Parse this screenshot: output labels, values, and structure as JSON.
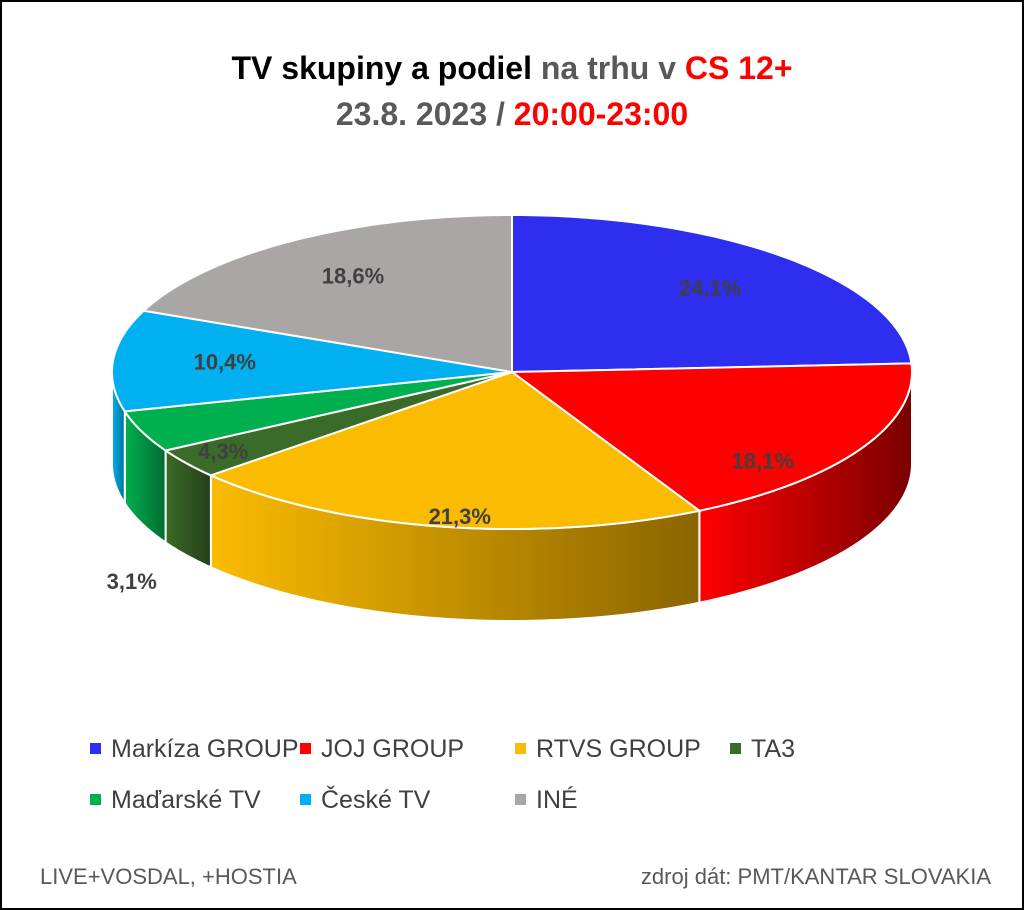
{
  "title": {
    "line1_part1": "TV skupiny a podiel",
    "line1_part2": " na trhu v ",
    "line1_part3": "CS 12+",
    "line2_part1": "23.8. 2023 / ",
    "line2_part2": "20:00-23:00"
  },
  "chart_data": {
    "type": "pie",
    "series": [
      {
        "name": "Markíza GROUP",
        "value": 24.1,
        "label": "24,1%",
        "color": "#2e2ef0",
        "side_color": "#1a1a90"
      },
      {
        "name": "JOJ GROUP",
        "value": 18.1,
        "label": "18,1%",
        "color": "#ff0000",
        "side_color": "#7a0000"
      },
      {
        "name": "RTVS GROUP",
        "value": 21.3,
        "label": "21,3%",
        "color": "#fbbb00",
        "side_color": "#8a6400"
      },
      {
        "name": "TA3",
        "value": 3.1,
        "label": "3,1%",
        "color": "#3b6b28",
        "side_color": "#233f17"
      },
      {
        "name": "Maďarské  TV",
        "value": 4.3,
        "label": "4,3%",
        "color": "#00b050",
        "side_color": "#006d31"
      },
      {
        "name": "České  TV",
        "value": 10.4,
        "label": "10,4%",
        "color": "#00b0f0",
        "side_color": "#006e96"
      },
      {
        "name": "INÉ",
        "value": 18.6,
        "label": "18,6%",
        "color": "#aaa6a6",
        "side_color": "#6b6868"
      }
    ],
    "legend_position": "bottom"
  },
  "footer": {
    "left": "LIVE+VOSDAL, +HOSTIA",
    "right": "zdroj dát: PMT/KANTAR SLOVAKIA"
  }
}
